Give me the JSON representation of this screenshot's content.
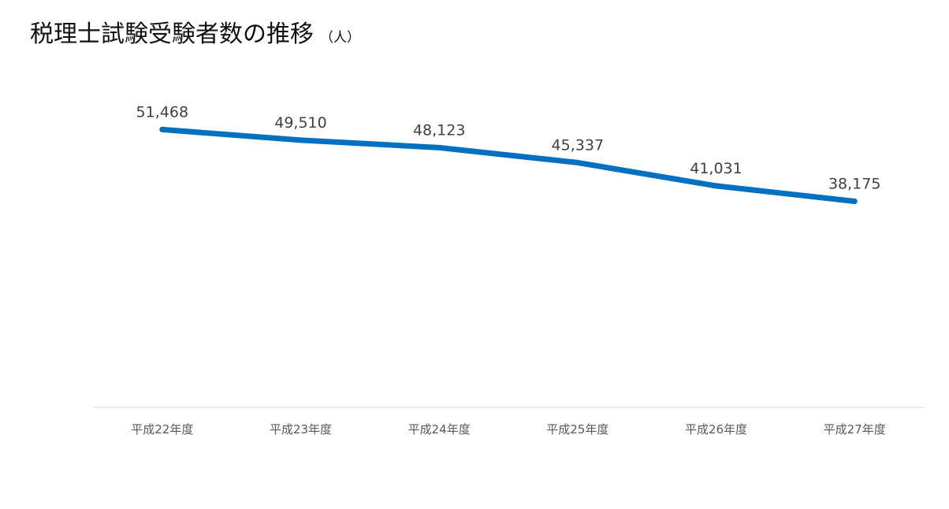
{
  "title": "税理士試験受験者数の推移",
  "unit_label": "（人）",
  "colors": {
    "line": "#0070C0",
    "axis": "#D9D9D9",
    "text": "#404040"
  },
  "chart_data": {
    "type": "line",
    "title": "税理士試験受験者数の推移",
    "categories": [
      "平成22年度",
      "平成23年度",
      "平成24年度",
      "平成25年度",
      "平成26年度",
      "平成27年度"
    ],
    "values": [
      51468,
      49510,
      48123,
      45337,
      41031,
      38175
    ],
    "data_labels": [
      "51,468",
      "49,510",
      "48,123",
      "45,337",
      "41,031",
      "38,175"
    ],
    "ylim": [
      0,
      60000
    ],
    "grid": false,
    "legend": "none",
    "xlabel": "",
    "ylabel": ""
  }
}
